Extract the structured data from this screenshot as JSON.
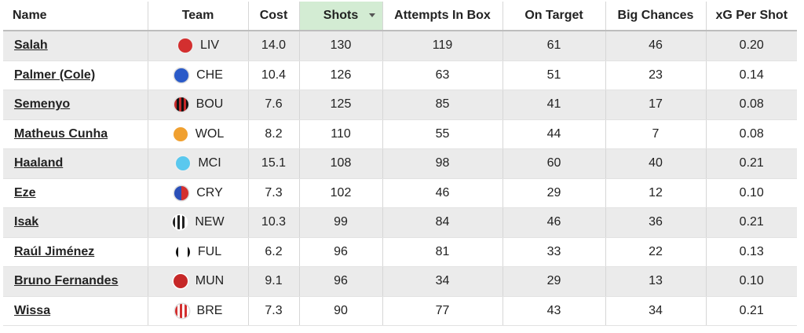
{
  "table": {
    "columns": [
      "Name",
      "Team",
      "Cost",
      "Shots",
      "Attempts In Box",
      "On Target",
      "Big Chances",
      "xG Per Shot"
    ],
    "rows": [
      [
        "Salah",
        "LIV",
        "14.0",
        "130",
        "119",
        "61",
        "46",
        "0.20"
      ],
      [
        "Palmer (Cole)",
        "CHE",
        "10.4",
        "126",
        "63",
        "51",
        "23",
        "0.14"
      ],
      [
        "Semenyo",
        "BOU",
        "7.6",
        "125",
        "85",
        "41",
        "17",
        "0.08"
      ],
      [
        "Matheus Cunha",
        "WOL",
        "8.2",
        "110",
        "55",
        "44",
        "7",
        "0.08"
      ],
      [
        "Haaland",
        "MCI",
        "15.1",
        "108",
        "98",
        "60",
        "40",
        "0.21"
      ],
      [
        "Eze",
        "CRY",
        "7.3",
        "102",
        "46",
        "29",
        "12",
        "0.10"
      ],
      [
        "Isak",
        "NEW",
        "10.3",
        "99",
        "84",
        "46",
        "36",
        "0.21"
      ],
      [
        "Raúl Jiménez",
        "FUL",
        "6.2",
        "96",
        "81",
        "33",
        "22",
        "0.13"
      ],
      [
        "Bruno Fernandes",
        "MUN",
        "9.1",
        "96",
        "34",
        "29",
        "13",
        "0.10"
      ],
      [
        "Wissa",
        "BRE",
        "7.3",
        "90",
        "77",
        "43",
        "34",
        "0.21"
      ]
    ]
  }
}
